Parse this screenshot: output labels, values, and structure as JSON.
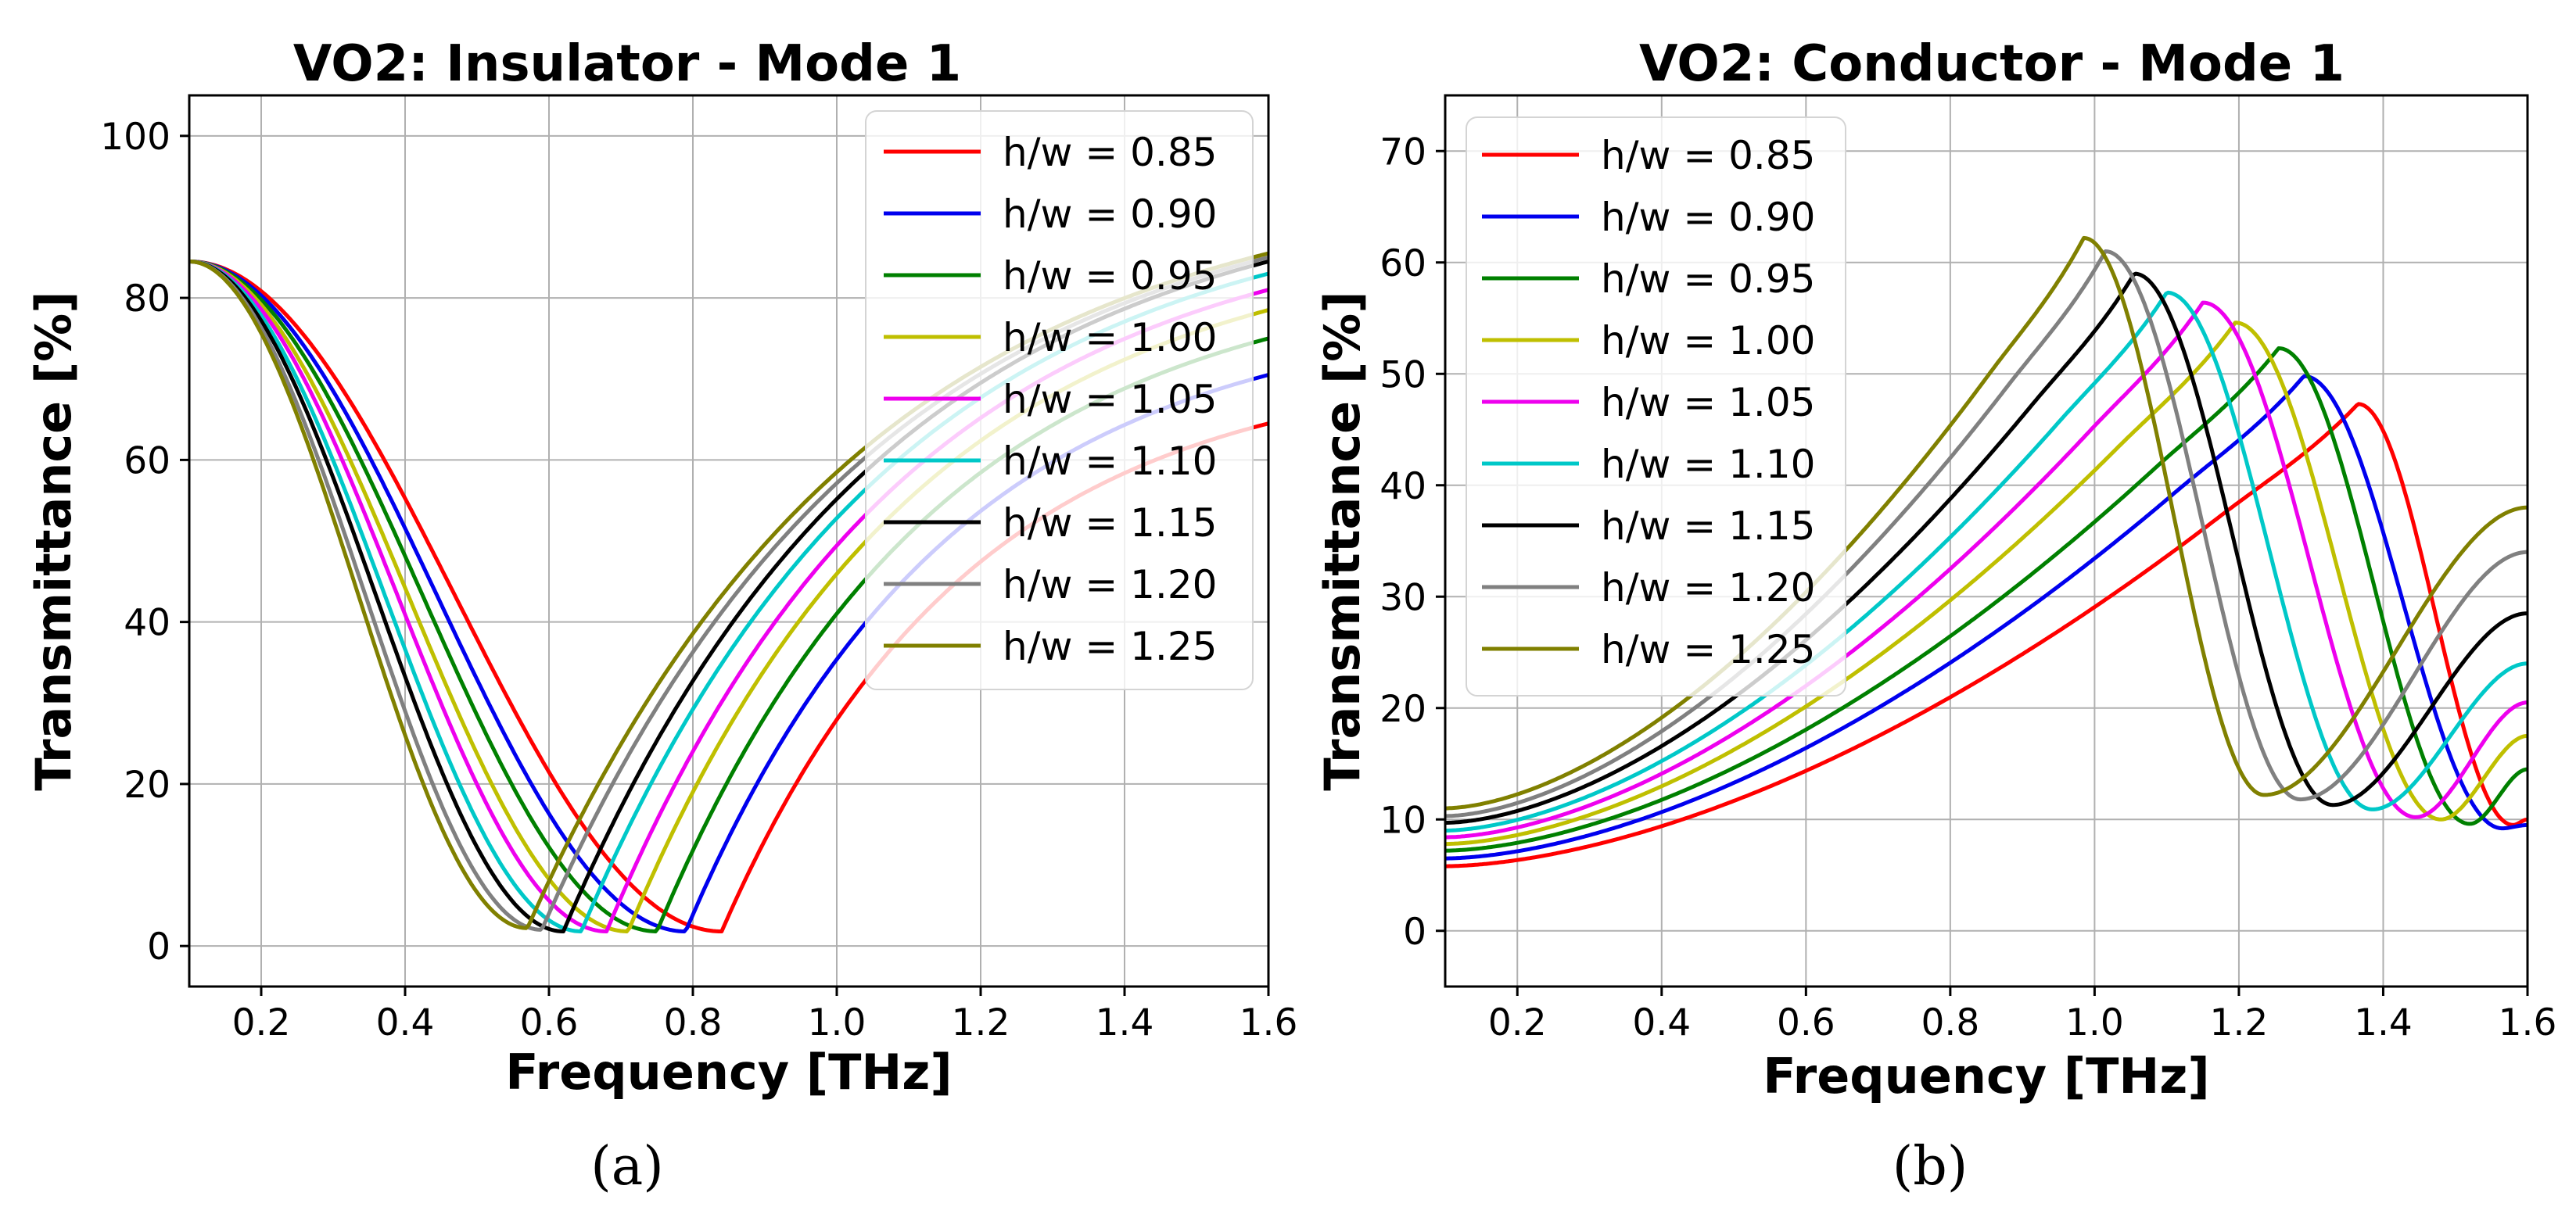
{
  "chart_data": [
    {
      "type": "line",
      "title": "VO2: Insulator - Mode 1",
      "xlabel": "Frequency [THz]",
      "ylabel": "Transmittance [%]",
      "xlim": [
        0.1,
        1.6
      ],
      "ylim": [
        -5,
        105
      ],
      "xticks": [
        "0.2",
        "0.4",
        "0.6",
        "0.8",
        "1.0",
        "1.2",
        "1.4",
        "1.6"
      ],
      "yticks": [
        "0",
        "20",
        "40",
        "60",
        "80",
        "100"
      ],
      "grid": true,
      "legend_position": "top-right",
      "panel_label": "(a)",
      "series": [
        {
          "name": "h/w = 0.85",
          "color": "#ff0000",
          "min_x": 0.84,
          "min_y": 1.8,
          "end_y": 64.5
        },
        {
          "name": "h/w = 0.90",
          "color": "#0000ee",
          "min_x": 0.79,
          "min_y": 1.8,
          "end_y": 70.5
        },
        {
          "name": "h/w = 0.95",
          "color": "#008000",
          "min_x": 0.75,
          "min_y": 1.8,
          "end_y": 75.0
        },
        {
          "name": "h/w = 1.00",
          "color": "#bfbf00",
          "min_x": 0.71,
          "min_y": 1.8,
          "end_y": 78.5
        },
        {
          "name": "h/w = 1.05",
          "color": "#ee00ee",
          "min_x": 0.68,
          "min_y": 1.8,
          "end_y": 81.0
        },
        {
          "name": "h/w = 1.10",
          "color": "#00c8c8",
          "min_x": 0.645,
          "min_y": 1.8,
          "end_y": 83.0
        },
        {
          "name": "h/w = 1.15",
          "color": "#000000",
          "min_x": 0.62,
          "min_y": 1.8,
          "end_y": 84.5
        },
        {
          "name": "h/w = 1.20",
          "color": "#808080",
          "min_x": 0.59,
          "min_y": 2.0,
          "end_y": 85.0
        },
        {
          "name": "h/w = 1.25",
          "color": "#808000",
          "min_x": 0.57,
          "min_y": 2.2,
          "end_y": 85.5
        }
      ]
    },
    {
      "type": "line",
      "title": "VO2: Conductor - Mode 1",
      "xlabel": "Frequency [THz]",
      "ylabel": "Transmittance [%]",
      "xlim": [
        0.1,
        1.6
      ],
      "ylim": [
        -5,
        75
      ],
      "xticks": [
        "0.2",
        "0.4",
        "0.6",
        "0.8",
        "1.0",
        "1.2",
        "1.4",
        "1.6"
      ],
      "yticks": [
        "0",
        "10",
        "20",
        "30",
        "40",
        "50",
        "60",
        "70"
      ],
      "grid": true,
      "legend_position": "top-left",
      "panel_label": "(b)",
      "series": [
        {
          "name": "h/w = 0.85",
          "color": "#ff0000",
          "start_y": 5.8,
          "peak_x": 1.365,
          "peak_y": 47.3,
          "dip_x": 1.58,
          "dip_y": 9.5,
          "end_y": 10.0
        },
        {
          "name": "h/w = 0.90",
          "color": "#0000ee",
          "start_y": 6.5,
          "peak_x": 1.29,
          "peak_y": 49.8,
          "dip_x": 1.565,
          "dip_y": 9.2,
          "end_y": 9.5
        },
        {
          "name": "h/w = 0.95",
          "color": "#008000",
          "start_y": 7.2,
          "peak_x": 1.255,
          "peak_y": 52.3,
          "dip_x": 1.52,
          "dip_y": 9.6,
          "end_y": 14.5
        },
        {
          "name": "h/w = 1.00",
          "color": "#bfbf00",
          "start_y": 7.8,
          "peak_x": 1.195,
          "peak_y": 54.6,
          "dip_x": 1.48,
          "dip_y": 10.0,
          "end_y": 17.5
        },
        {
          "name": "h/w = 1.05",
          "color": "#ee00ee",
          "start_y": 8.4,
          "peak_x": 1.15,
          "peak_y": 56.4,
          "dip_x": 1.445,
          "dip_y": 10.2,
          "end_y": 20.5
        },
        {
          "name": "h/w = 1.10",
          "color": "#00c8c8",
          "start_y": 9.0,
          "peak_x": 1.1,
          "peak_y": 57.3,
          "dip_x": 1.385,
          "dip_y": 10.9,
          "end_y": 24.0
        },
        {
          "name": "h/w = 1.15",
          "color": "#000000",
          "start_y": 9.7,
          "peak_x": 1.055,
          "peak_y": 59.0,
          "dip_x": 1.33,
          "dip_y": 11.3,
          "end_y": 28.5
        },
        {
          "name": "h/w = 1.20",
          "color": "#808080",
          "start_y": 10.3,
          "peak_x": 1.015,
          "peak_y": 61.0,
          "dip_x": 1.285,
          "dip_y": 11.8,
          "end_y": 34.0
        },
        {
          "name": "h/w = 1.25",
          "color": "#808000",
          "start_y": 11.0,
          "peak_x": 0.985,
          "peak_y": 62.2,
          "dip_x": 1.235,
          "dip_y": 12.2,
          "end_y": 38.0
        }
      ]
    }
  ]
}
